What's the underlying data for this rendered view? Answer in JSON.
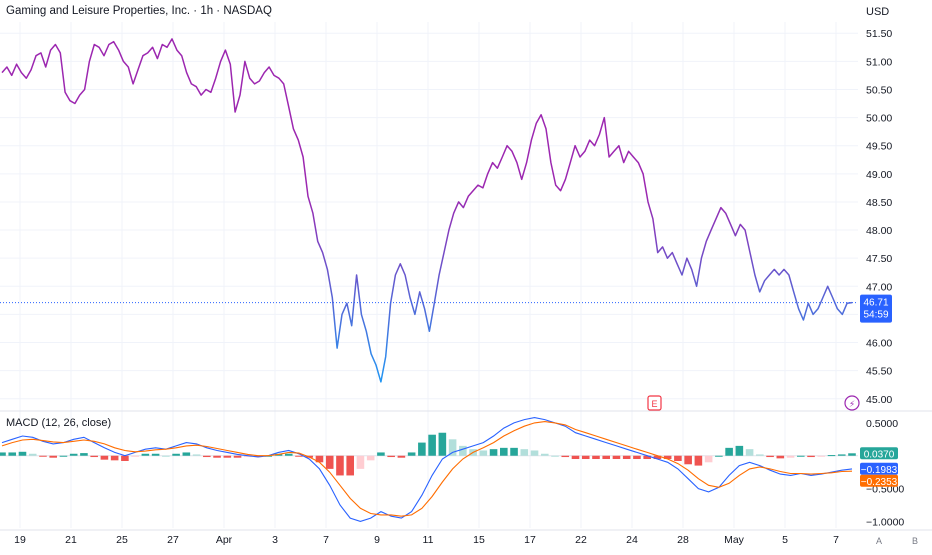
{
  "header": {
    "title": "Gaming and Leisure Properties, Inc. · 1h · NASDAQ",
    "currency": "USD"
  },
  "macd_panel": {
    "title": "MACD (12, 26, close)"
  },
  "price_tag": {
    "value": "46.71",
    "countdown": "54:59"
  },
  "macd_tags": {
    "histogram": "0.0370",
    "macd": "−0.1983",
    "signal": "−0.2353"
  },
  "event_markers": [
    {
      "glyph": "E",
      "kind": "earnings",
      "icon": "earnings-icon"
    },
    {
      "glyph": "⚡",
      "kind": "dividend",
      "icon": "lightning-icon"
    }
  ],
  "corner_buttons": [
    "A",
    "B"
  ],
  "colors": {
    "grid": "#f0f3fa",
    "price_line_top": "#9c27b0",
    "price_line_bottom": "#2196f3",
    "macd_line": "#2962ff",
    "signal_line": "#ff6d00",
    "hist_up_strong": "#26a69a",
    "hist_up_weak": "#b2dfdb",
    "hist_down_strong": "#ef5350",
    "hist_down_weak": "#ffcdd2",
    "price_tag_bg": "#2962ff",
    "hist_tag_bg": "#26a69a",
    "signal_tag_bg": "#ff6d00"
  },
  "chart_data": [
    {
      "type": "line",
      "pane": "price",
      "series": [
        {
          "values": [
            50.8,
            50.9,
            50.75,
            50.95,
            50.8,
            50.7,
            50.85,
            51.1,
            51.15,
            50.9,
            51.2,
            51.3,
            51.15,
            50.45,
            50.3,
            50.25,
            50.4,
            50.5,
            51.0,
            51.3,
            51.25,
            51.1,
            51.3,
            51.35,
            51.2,
            51.0,
            50.9,
            50.6,
            50.85,
            51.1,
            51.15,
            51.25,
            51.05,
            51.3,
            51.25,
            51.4,
            51.2,
            51.1,
            50.8,
            50.6,
            50.55,
            50.4,
            50.5,
            50.45,
            50.7,
            51.0,
            51.2,
            50.95,
            50.1,
            50.4,
            51.0,
            50.7,
            50.6,
            50.65,
            50.8,
            50.9,
            50.75,
            50.7,
            50.6,
            50.2,
            49.8,
            49.6,
            49.3,
            48.6,
            48.3,
            47.8,
            47.6,
            47.3,
            46.8,
            45.9,
            46.5,
            46.7,
            46.3,
            47.2,
            46.5,
            46.2,
            45.8,
            45.6,
            45.3,
            45.75,
            46.7,
            47.2,
            47.4,
            47.2,
            46.8,
            46.5,
            46.9,
            46.6,
            46.2,
            46.7,
            47.2,
            47.6,
            48.0,
            48.3,
            48.5,
            48.4,
            48.6,
            48.7,
            48.8,
            48.75,
            49.0,
            49.2,
            49.1,
            49.3,
            49.5,
            49.4,
            49.2,
            48.9,
            49.2,
            49.6,
            49.9,
            50.05,
            49.8,
            49.2,
            48.8,
            48.7,
            48.9,
            49.2,
            49.5,
            49.3,
            49.4,
            49.6,
            49.5,
            49.7,
            50.0,
            49.3,
            49.4,
            49.5,
            49.2,
            49.4,
            49.3,
            49.2,
            49.0,
            48.5,
            48.2,
            47.6,
            47.7,
            47.5,
            47.6,
            47.4,
            47.2,
            47.5,
            47.3,
            47.0,
            47.5,
            47.8,
            48.0,
            48.2,
            48.4,
            48.3,
            48.1,
            47.9,
            48.1,
            48.0,
            47.6,
            47.2,
            46.9,
            47.1,
            47.2,
            47.3,
            47.2,
            47.3,
            47.2,
            46.9,
            46.6,
            46.4,
            46.7,
            46.5,
            46.6,
            46.8,
            47.0,
            46.8,
            46.6,
            46.5,
            46.7,
            46.71
          ]
        }
      ],
      "y_axis": {
        "ticks": [
          51.5,
          51.0,
          50.5,
          50.0,
          49.5,
          49.0,
          48.5,
          48.0,
          47.5,
          47.0,
          46.5,
          46.0,
          45.5,
          45.0
        ],
        "tick_labels": [
          "51.50",
          "51.00",
          "50.50",
          "50.00",
          "49.50",
          "49.00",
          "48.50",
          "48.00",
          "47.50",
          "47.00",
          "46.50",
          "46.00",
          "45.50",
          "45.00"
        ],
        "ylim": [
          44.8,
          51.7
        ]
      },
      "last_price": 46.71,
      "grid": true
    },
    {
      "type": "line",
      "pane": "macd",
      "series": [
        {
          "name": "MACD",
          "values": [
            0.2,
            0.25,
            0.3,
            0.28,
            0.22,
            0.18,
            0.2,
            0.25,
            0.28,
            0.2,
            0.12,
            0.05,
            0.0,
            0.05,
            0.1,
            0.12,
            0.1,
            0.15,
            0.2,
            0.18,
            0.12,
            0.08,
            0.05,
            0.02,
            0.0,
            -0.02,
            0.0,
            0.05,
            0.08,
            0.03,
            -0.05,
            -0.2,
            -0.45,
            -0.75,
            -0.95,
            -1.0,
            -0.95,
            -0.85,
            -0.92,
            -0.95,
            -0.85,
            -0.6,
            -0.3,
            -0.05,
            0.05,
            0.1,
            0.15,
            0.2,
            0.3,
            0.42,
            0.5,
            0.55,
            0.58,
            0.55,
            0.5,
            0.45,
            0.35,
            0.3,
            0.25,
            0.2,
            0.15,
            0.1,
            0.05,
            0.0,
            -0.05,
            -0.1,
            -0.2,
            -0.35,
            -0.5,
            -0.55,
            -0.48,
            -0.3,
            -0.15,
            -0.1,
            -0.15,
            -0.22,
            -0.28,
            -0.3,
            -0.27,
            -0.3,
            -0.28,
            -0.25,
            -0.22,
            -0.2
          ]
        },
        {
          "name": "Signal",
          "values": [
            0.15,
            0.2,
            0.24,
            0.25,
            0.23,
            0.21,
            0.2,
            0.22,
            0.24,
            0.22,
            0.18,
            0.12,
            0.08,
            0.06,
            0.07,
            0.09,
            0.1,
            0.12,
            0.15,
            0.16,
            0.14,
            0.11,
            0.08,
            0.05,
            0.02,
            0.0,
            0.0,
            0.02,
            0.05,
            0.04,
            -0.02,
            -0.1,
            -0.25,
            -0.45,
            -0.65,
            -0.8,
            -0.88,
            -0.9,
            -0.9,
            -0.92,
            -0.9,
            -0.8,
            -0.62,
            -0.4,
            -0.2,
            -0.05,
            0.05,
            0.12,
            0.2,
            0.3,
            0.38,
            0.45,
            0.5,
            0.52,
            0.5,
            0.47,
            0.4,
            0.35,
            0.3,
            0.25,
            0.2,
            0.15,
            0.1,
            0.05,
            0.0,
            -0.05,
            -0.12,
            -0.22,
            -0.35,
            -0.45,
            -0.48,
            -0.42,
            -0.3,
            -0.2,
            -0.17,
            -0.2,
            -0.24,
            -0.27,
            -0.27,
            -0.28,
            -0.27,
            -0.26,
            -0.24,
            -0.235
          ]
        }
      ],
      "histogram": [
        0.05,
        0.05,
        0.06,
        0.03,
        -0.01,
        -0.03,
        0.0,
        0.03,
        0.04,
        -0.02,
        -0.06,
        -0.07,
        -0.08,
        -0.01,
        0.03,
        0.03,
        0.0,
        0.03,
        0.05,
        0.02,
        -0.02,
        -0.03,
        -0.03,
        -0.03,
        -0.02,
        -0.02,
        0.0,
        0.03,
        0.03,
        -0.01,
        -0.03,
        -0.1,
        -0.2,
        -0.3,
        -0.3,
        -0.2,
        -0.07,
        0.05,
        -0.02,
        -0.03,
        0.05,
        0.2,
        0.32,
        0.35,
        0.25,
        0.15,
        0.1,
        0.08,
        0.1,
        0.12,
        0.12,
        0.1,
        0.08,
        0.03,
        0.0,
        -0.02,
        -0.05,
        -0.05,
        -0.05,
        -0.05,
        -0.05,
        -0.05,
        -0.05,
        -0.05,
        -0.05,
        -0.05,
        -0.08,
        -0.13,
        -0.15,
        -0.1,
        0.0,
        0.12,
        0.15,
        0.1,
        0.02,
        -0.02,
        -0.04,
        -0.03,
        0.0,
        -0.02,
        -0.01,
        0.01,
        0.02,
        0.037
      ],
      "y_axis": {
        "ticks": [
          0.5,
          -0.5,
          -1.0
        ],
        "tick_labels": [
          "0.5000",
          "−0.5000",
          "−1.0000"
        ],
        "ylim": [
          -1.1,
          0.62
        ]
      },
      "last_values": {
        "histogram": 0.037,
        "macd": -0.1983,
        "signal": -0.2353
      }
    }
  ],
  "x_axis": {
    "tick_labels": [
      "19",
      "21",
      "25",
      "27",
      "Apr",
      "3",
      "7",
      "9",
      "11",
      "15",
      "17",
      "22",
      "24",
      "28",
      "May",
      "5",
      "7"
    ]
  }
}
